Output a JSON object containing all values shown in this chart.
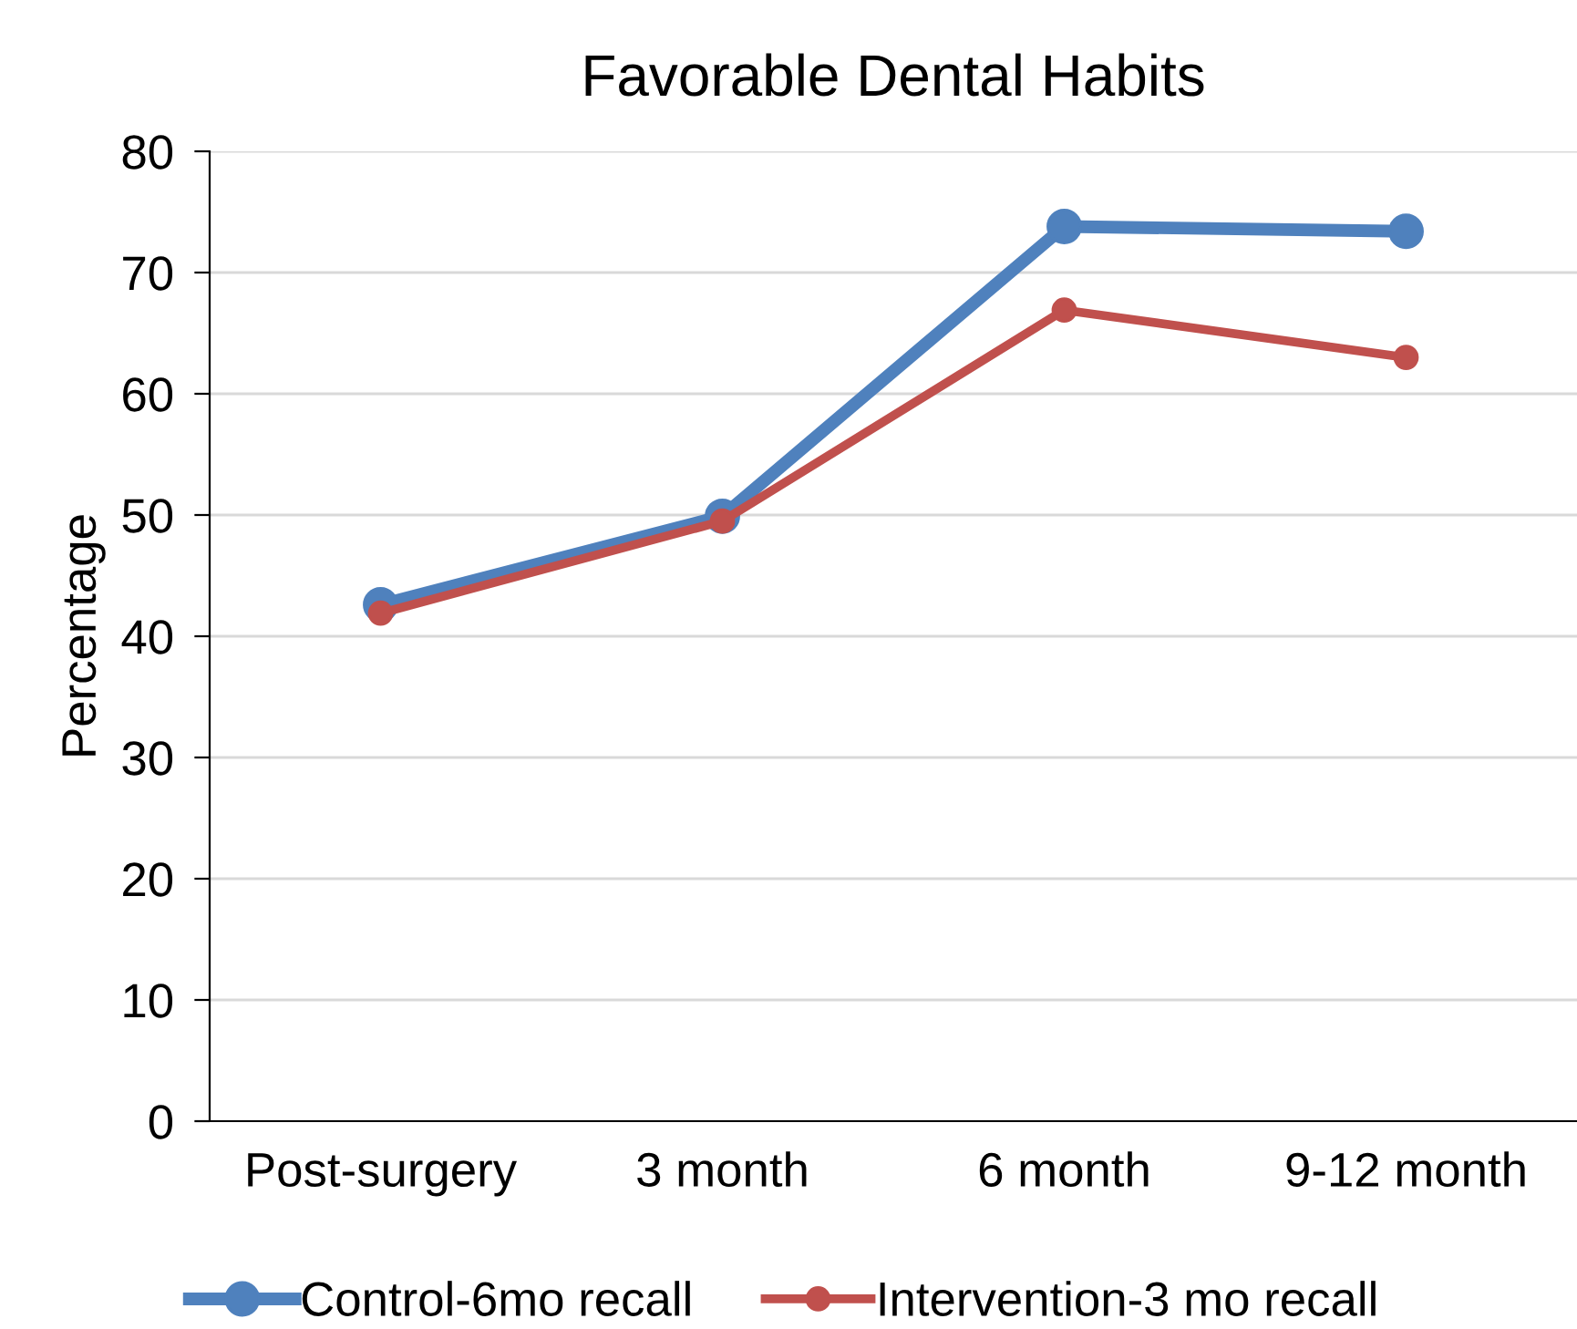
{
  "chart_data": {
    "type": "line",
    "title": "Favorable Dental Habits",
    "ylabel": "Percentage",
    "categories": [
      "Post-surgery",
      "3 month",
      "6 month",
      "9-12 month"
    ],
    "series": [
      {
        "name": "Control-6mo recall",
        "color": "#4f81bd",
        "values": [
          42.6,
          49.9,
          73.8,
          73.4
        ]
      },
      {
        "name": "Intervention-3 mo recall",
        "color": "#c0504d",
        "values": [
          41.9,
          49.5,
          66.9,
          63.0
        ]
      }
    ],
    "ylim": [
      0,
      80
    ],
    "yticks": [
      0,
      10,
      20,
      30,
      40,
      50,
      60,
      70,
      80
    ],
    "grid": "y",
    "legend": "bottom",
    "marker": "circle",
    "line_style": "solid"
  }
}
